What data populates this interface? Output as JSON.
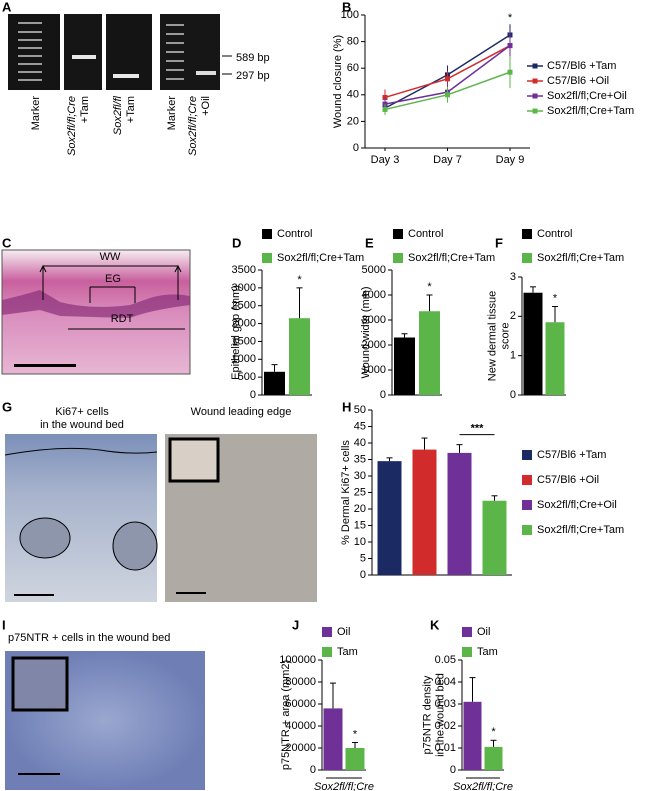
{
  "panel_letters": [
    "A",
    "B",
    "C",
    "D",
    "E",
    "F",
    "G",
    "H",
    "I",
    "J",
    "K"
  ],
  "gel": {
    "lane_labels": [
      [
        "Marker"
      ],
      [
        "Sox2fl/fl;Cre",
        "+Tam"
      ],
      [
        "Sox2fl/fl",
        "+Tam"
      ],
      [
        "Marker"
      ],
      [
        "Sox2fl/fl;Cre",
        "+Oil"
      ]
    ],
    "size_labels": [
      "589 bp",
      "297 bp"
    ]
  },
  "wound_image": {
    "labels": [
      "WW",
      "EG",
      "RDT"
    ]
  },
  "ki67_images": {
    "titles": [
      [
        "Ki67+ cells",
        "in the wound bed"
      ],
      [
        "Wound leading edge"
      ]
    ]
  },
  "p75_image": {
    "title": "p75NTR + cells in the wound bed"
  },
  "chart_data": [
    {
      "type": "line",
      "ylabel": [
        "Wound closure (%)"
      ],
      "categories": [
        "Day 3",
        "Day 7",
        "Day 9"
      ],
      "ylim": [
        0,
        100
      ],
      "yticks": [
        0,
        20,
        40,
        60,
        80,
        100
      ],
      "annotation": "*",
      "series": [
        {
          "name": "C57/Bl6 +Tam",
          "color": "#1c2a64",
          "values": [
            30,
            55,
            85
          ],
          "errors": [
            5,
            7,
            8
          ]
        },
        {
          "name": "C57/Bl6 +Oil",
          "color": "#d22b2b",
          "values": [
            38,
            52,
            77
          ],
          "errors": [
            6,
            6,
            9
          ]
        },
        {
          "name": "Sox2fl/fl;Cre+Oil",
          "color": "#6f3198",
          "values": [
            33,
            42,
            77
          ],
          "errors": [
            5,
            7,
            10
          ]
        },
        {
          "name": "Sox2fl/fl;Cre+Tam",
          "color": "#5cb548",
          "values": [
            29,
            40,
            57
          ],
          "errors": [
            4,
            6,
            12
          ]
        }
      ]
    },
    {
      "type": "bar",
      "ylabel": [
        "Epithelial gap (mm)"
      ],
      "ylim": [
        0,
        3500
      ],
      "yticks": [
        0,
        500,
        1000,
        1500,
        2000,
        2500,
        3000,
        3500
      ],
      "annotation": "*",
      "series": [
        {
          "name": "Control",
          "color": "#000000",
          "values": [
            650
          ],
          "errors": [
            200
          ]
        },
        {
          "name": "Sox2fl/fl;Cre+Tam",
          "color": "#5cb548",
          "values": [
            2150
          ],
          "errors": [
            850
          ]
        }
      ]
    },
    {
      "type": "bar",
      "ylabel": [
        "Wound width (mm)"
      ],
      "ylim": [
        0,
        5000
      ],
      "yticks": [
        0,
        1000,
        2000,
        3000,
        4000,
        5000
      ],
      "annotation": "*",
      "series": [
        {
          "name": "Control",
          "color": "#000000",
          "values": [
            2300
          ],
          "errors": [
            150
          ]
        },
        {
          "name": "Sox2fl/fl;Cre+Tam",
          "color": "#5cb548",
          "values": [
            3350
          ],
          "errors": [
            650
          ]
        }
      ]
    },
    {
      "type": "bar",
      "ylabel": [
        "New dermal tissue",
        "score"
      ],
      "ylim": [
        0,
        3
      ],
      "yticks": [
        0,
        1,
        2,
        3
      ],
      "annotation": "*",
      "series": [
        {
          "name": "Control",
          "color": "#000000",
          "values": [
            2.6
          ],
          "errors": [
            0.15
          ]
        },
        {
          "name": "Sox2fl/fl;Cre+Tam",
          "color": "#5cb548",
          "values": [
            1.85
          ],
          "errors": [
            0.4
          ]
        }
      ]
    },
    {
      "type": "bar",
      "ylabel": [
        "% Dermal Ki67+ cells"
      ],
      "ylim": [
        0,
        50
      ],
      "yticks": [
        0,
        5,
        10,
        15,
        20,
        25,
        30,
        35,
        40,
        45,
        50
      ],
      "annotation": "***",
      "series": [
        {
          "name": "C57/Bl6 +Tam",
          "color": "#1c2a64",
          "values": [
            34.5
          ],
          "errors": [
            1
          ]
        },
        {
          "name": "C57/Bl6 +Oil",
          "color": "#d22b2b",
          "values": [
            38
          ],
          "errors": [
            3.5
          ]
        },
        {
          "name": "Sox2fl/fl;Cre+Oil",
          "color": "#6f3198",
          "values": [
            37
          ],
          "errors": [
            2.5
          ]
        },
        {
          "name": "Sox2fl/fl;Cre+Tam",
          "color": "#5cb548",
          "values": [
            22.5
          ],
          "errors": [
            1.5
          ]
        }
      ]
    },
    {
      "type": "bar",
      "ylabel": [
        "p75NTR + area  (mm2)"
      ],
      "xlabel": "Sox2fl/fl;Cre",
      "ylim": [
        0,
        100000
      ],
      "yticks": [
        0,
        20000,
        40000,
        60000,
        80000,
        100000
      ],
      "annotation": "*",
      "series": [
        {
          "name": "Oil",
          "color": "#6f3198",
          "values": [
            56000
          ],
          "errors": [
            23000
          ]
        },
        {
          "name": "Tam",
          "color": "#5cb548",
          "values": [
            20000
          ],
          "errors": [
            5000
          ]
        }
      ]
    },
    {
      "type": "bar",
      "ylabel": [
        "p75NTR density",
        "in the wound bed"
      ],
      "xlabel": "Sox2fl/fl;Cre",
      "ylim": [
        0,
        0.05
      ],
      "yticks": [
        0,
        0.01,
        0.02,
        0.03,
        0.04,
        0.05
      ],
      "annotation": "*",
      "series": [
        {
          "name": "Oil",
          "color": "#6f3198",
          "values": [
            0.031
          ],
          "errors": [
            0.011
          ]
        },
        {
          "name": "Tam",
          "color": "#5cb548",
          "values": [
            0.0105
          ],
          "errors": [
            0.003
          ]
        }
      ]
    }
  ]
}
